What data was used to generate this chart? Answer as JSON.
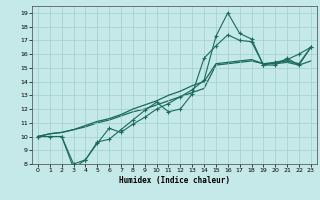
{
  "xlabel": "Humidex (Indice chaleur)",
  "bg_color": "#c5e8e8",
  "grid_color": "#9fcfcf",
  "line_color": "#1a6b5a",
  "xlim": [
    -0.5,
    23.5
  ],
  "ylim": [
    8,
    19.5
  ],
  "xticks": [
    0,
    1,
    2,
    3,
    4,
    5,
    6,
    7,
    8,
    9,
    10,
    11,
    12,
    13,
    14,
    15,
    16,
    17,
    18,
    19,
    20,
    21,
    22,
    23
  ],
  "yticks": [
    8,
    9,
    10,
    11,
    12,
    13,
    14,
    15,
    16,
    17,
    18,
    19
  ],
  "line1_x": [
    0,
    1,
    2,
    3,
    4,
    5,
    6,
    7,
    8,
    9,
    10,
    11,
    12,
    13,
    14,
    15,
    16,
    17,
    18,
    19,
    20,
    21,
    22,
    23
  ],
  "line1_y": [
    10.0,
    10.2,
    10.3,
    10.5,
    10.7,
    11.0,
    11.2,
    11.5,
    11.8,
    12.0,
    12.3,
    12.6,
    12.9,
    13.2,
    13.5,
    15.2,
    15.3,
    15.4,
    15.5,
    15.3,
    15.3,
    15.4,
    15.2,
    15.5
  ],
  "line2_x": [
    0,
    1,
    2,
    3,
    4,
    5,
    6,
    7,
    8,
    9,
    10,
    11,
    12,
    13,
    14,
    15,
    16,
    17,
    18,
    19,
    20,
    21,
    22,
    23
  ],
  "line2_y": [
    10.0,
    10.2,
    10.3,
    10.5,
    10.8,
    11.1,
    11.3,
    11.6,
    12.0,
    12.3,
    12.6,
    13.0,
    13.3,
    13.7,
    14.0,
    15.3,
    15.4,
    15.5,
    15.6,
    15.3,
    15.4,
    15.5,
    15.3,
    16.5
  ],
  "line3_x": [
    0,
    1,
    2,
    3,
    4,
    5,
    6,
    7,
    8,
    9,
    10,
    11,
    12,
    13,
    14,
    15,
    16,
    17,
    18,
    19,
    20,
    21,
    22,
    23
  ],
  "line3_y": [
    10.0,
    10.0,
    10.0,
    7.7,
    8.3,
    9.6,
    9.8,
    10.5,
    11.2,
    11.9,
    12.5,
    11.8,
    12.0,
    13.1,
    15.7,
    16.6,
    17.4,
    17.0,
    16.9,
    15.2,
    15.4,
    15.6,
    16.0,
    16.5
  ],
  "line4_x": [
    0,
    2,
    3,
    4,
    5,
    6,
    7,
    8,
    9,
    10,
    11,
    12,
    13,
    14,
    15,
    16,
    17,
    18,
    19,
    20,
    21,
    22,
    23
  ],
  "line4_y": [
    10.0,
    10.0,
    8.0,
    8.3,
    9.5,
    10.6,
    10.3,
    10.9,
    11.4,
    12.0,
    12.4,
    12.9,
    13.4,
    14.1,
    17.3,
    19.0,
    17.5,
    17.1,
    15.2,
    15.2,
    15.7,
    15.2,
    16.5
  ]
}
